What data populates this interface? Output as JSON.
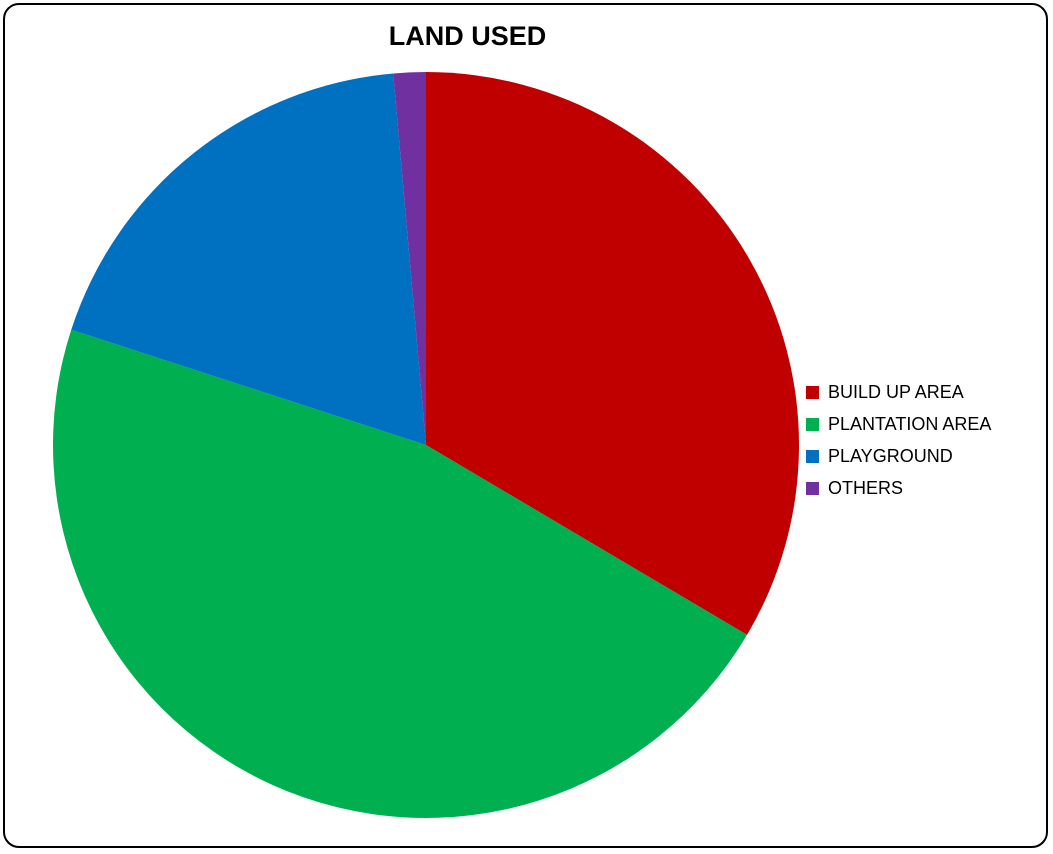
{
  "chart_data": {
    "type": "pie",
    "title": "LAND USED",
    "categories": [
      "BUILD UP AREA",
      "PLANTATION AREA",
      "PLAYGROUND",
      "OTHERS"
    ],
    "values": [
      33.5,
      46.5,
      18.6,
      1.4
    ],
    "colors": [
      "#c00000",
      "#00b050",
      "#0070c0",
      "#7030a0"
    ],
    "legend_position": "right",
    "start_angle": "top, clockwise"
  }
}
